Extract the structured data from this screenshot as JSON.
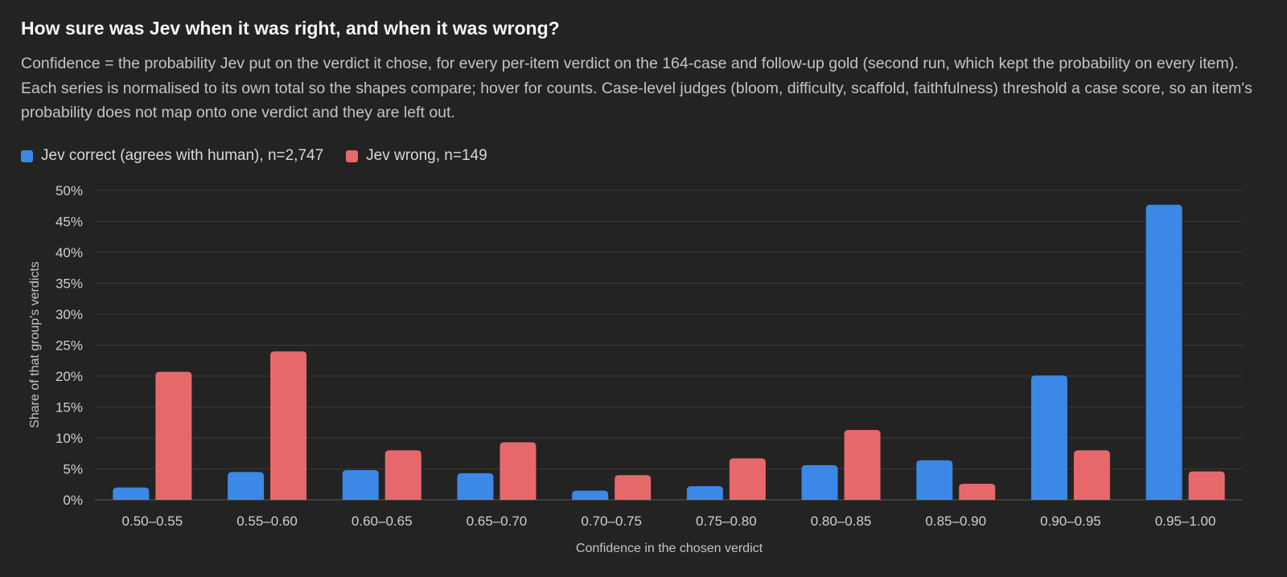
{
  "header": {
    "title": "How sure was Jev when it was right, and when it was wrong?",
    "subtitle": "Confidence = the probability Jev put on the verdict it chose, for every per-item verdict on the 164-case and follow-up gold (second run, which kept the probability on every item). Each series is normalised to its own total so the shapes compare; hover for counts. Case-level judges (bloom, difficulty, scaffold, faithfulness) threshold a case score, so an item's probability does not map onto one verdict and they are left out."
  },
  "legend": {
    "items": [
      {
        "label": "Jev correct (agrees with human), n=2,747",
        "color": "#3b88e6"
      },
      {
        "label": "Jev wrong, n=149",
        "color": "#e7686b"
      }
    ]
  },
  "chart_data": {
    "type": "bar",
    "xlabel": "Confidence in the chosen verdict",
    "ylabel": "Share of that group's verdicts",
    "ylim": [
      0,
      50
    ],
    "yticks": [
      0,
      5,
      10,
      15,
      20,
      25,
      30,
      35,
      40,
      45,
      50
    ],
    "ytick_labels": [
      "0%",
      "5%",
      "10%",
      "15%",
      "20%",
      "25%",
      "30%",
      "35%",
      "40%",
      "45%",
      "50%"
    ],
    "grid": true,
    "legend_position": "top-left",
    "categories": [
      "0.50–0.55",
      "0.55–0.60",
      "0.60–0.65",
      "0.65–0.70",
      "0.70–0.75",
      "0.75–0.80",
      "0.80–0.85",
      "0.85–0.90",
      "0.90–0.95",
      "0.95–1.00"
    ],
    "series": [
      {
        "name": "Jev correct (agrees with human), n=2,747",
        "color": "#3b88e6",
        "values": [
          2.0,
          4.5,
          4.8,
          4.3,
          1.5,
          2.2,
          5.6,
          6.4,
          20.1,
          47.7
        ]
      },
      {
        "name": "Jev wrong, n=149",
        "color": "#e7686b",
        "values": [
          20.7,
          24.0,
          8.0,
          9.3,
          4.0,
          6.7,
          11.3,
          2.6,
          8.0,
          4.6
        ]
      }
    ]
  }
}
